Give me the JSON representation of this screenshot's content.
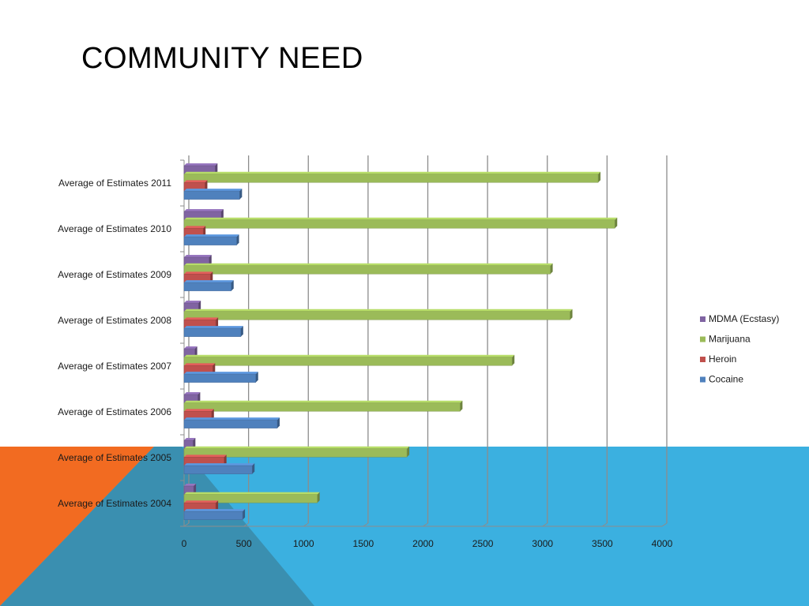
{
  "title": "COMMUNITY NEED",
  "theme": {
    "orange": "#F26B21",
    "blue": "#3BB0E0",
    "overlap": "#3A8FB0"
  },
  "chart_data": {
    "type": "bar",
    "orientation": "horizontal",
    "categories": [
      "Average of Estimates 2004",
      "Average of Estimates 2005",
      "Average of Estimates 2006",
      "Average of Estimates 2007",
      "Average of Estimates 2008",
      "Average of Estimates 2009",
      "Average of Estimates 2010",
      "Average of Estimates 2011"
    ],
    "series": [
      {
        "name": "Cocaine",
        "color": "#4F81BD",
        "values": [
          490,
          570,
          780,
          600,
          475,
          395,
          440,
          465
        ]
      },
      {
        "name": "Heroin",
        "color": "#C0504D",
        "values": [
          265,
          335,
          230,
          240,
          265,
          220,
          160,
          175
        ]
      },
      {
        "name": "Marijuana",
        "color": "#9BBB59",
        "values": [
          1115,
          1865,
          2310,
          2745,
          3230,
          3065,
          3605,
          3465
        ]
      },
      {
        "name": "MDMA (Ecstasy)",
        "color": "#8064A2",
        "values": [
          80,
          75,
          115,
          90,
          120,
          210,
          310,
          260
        ]
      }
    ],
    "xlim": [
      0,
      4000
    ],
    "xticks": [
      0,
      500,
      1000,
      1500,
      2000,
      2500,
      3000,
      3500,
      4000
    ],
    "xtick_labels": [
      "0",
      "500",
      "1000",
      "1500",
      "2000",
      "2500",
      "3000",
      "3500",
      "4000"
    ],
    "grid": true,
    "legend_position": "right",
    "legend": [
      "MDMA (Ecstasy)",
      "Marijuana",
      "Heroin",
      "Cocaine"
    ]
  }
}
